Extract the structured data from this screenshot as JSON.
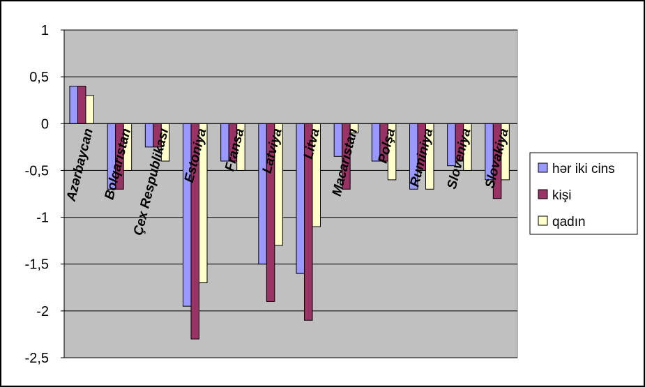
{
  "chart_data": {
    "type": "bar",
    "categories": [
      "Azərbaycan",
      "Bolqarıstan",
      "Çex Respublikası",
      "Estoniya",
      "Fransa",
      "Latviya",
      "Litva",
      "Macarıstan",
      "Polşa",
      "Ruminiya",
      "Sloveniya",
      "Slovakiya"
    ],
    "series": [
      {
        "name": "hər iki cins",
        "color": "#9999ff",
        "values": [
          0.4,
          -0.7,
          -0.25,
          -1.95,
          -0.4,
          -1.5,
          -1.6,
          -0.35,
          -0.4,
          -0.7,
          -0.45,
          -0.6
        ]
      },
      {
        "name": "kişi",
        "color": "#993366",
        "values": [
          0.4,
          -0.7,
          -0.25,
          -2.3,
          -0.4,
          -1.9,
          -2.1,
          -0.7,
          -0.4,
          -0.5,
          -0.4,
          -0.8
        ]
      },
      {
        "name": "qadın",
        "color": "#ffffcc",
        "values": [
          0.3,
          -0.5,
          -0.4,
          -1.7,
          -0.5,
          -1.3,
          -1.1,
          -0.1,
          -0.6,
          -0.7,
          -0.5,
          -0.6
        ]
      }
    ],
    "yticks": [
      "1",
      "0,5",
      "0",
      "-0,5",
      "-1",
      "-1,5",
      "-2",
      "-2,5"
    ],
    "ylim": [
      -2.5,
      1
    ],
    "grid": true,
    "legend_position": "right",
    "plot_background": "#c0c0c0"
  }
}
